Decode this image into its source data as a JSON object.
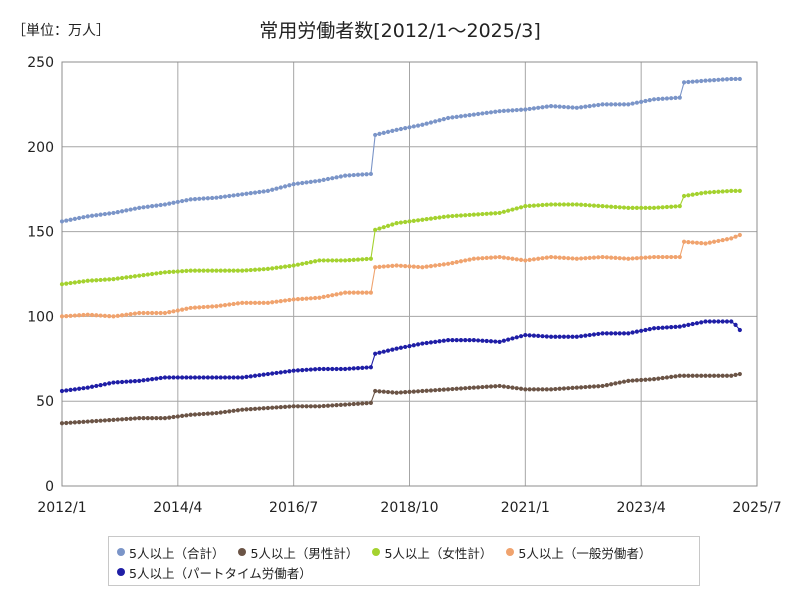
{
  "unit_label": "［単位：万人］",
  "chart_data": {
    "type": "line",
    "title": "常用労働者数[2012/1～2025/3]",
    "xlabel": "",
    "ylabel": "",
    "xlim": [
      "2012/1",
      "2025/7"
    ],
    "ylim": [
      0,
      250
    ],
    "x_ticks": [
      "2012/1",
      "2014/4",
      "2016/7",
      "2018/10",
      "2021/1",
      "2023/4",
      "2025/7"
    ],
    "y_ticks": [
      0,
      50,
      100,
      150,
      200,
      250
    ],
    "grid": true,
    "legend_position": "bottom",
    "series": [
      {
        "name": "5人以上（合計）",
        "color": "#7b95c8",
        "points": [
          [
            "2012/1",
            156
          ],
          [
            "2012/7",
            159
          ],
          [
            "2013/1",
            161
          ],
          [
            "2013/7",
            164
          ],
          [
            "2014/1",
            166
          ],
          [
            "2014/7",
            169
          ],
          [
            "2015/1",
            170
          ],
          [
            "2015/7",
            172
          ],
          [
            "2016/1",
            174
          ],
          [
            "2016/7",
            178
          ],
          [
            "2017/1",
            180
          ],
          [
            "2017/7",
            183
          ],
          [
            "2018/1",
            184
          ],
          [
            "2018/2",
            207
          ],
          [
            "2018/7",
            210
          ],
          [
            "2019/1",
            213
          ],
          [
            "2019/7",
            217
          ],
          [
            "2020/1",
            219
          ],
          [
            "2020/7",
            221
          ],
          [
            "2021/1",
            222
          ],
          [
            "2021/7",
            224
          ],
          [
            "2022/1",
            223
          ],
          [
            "2022/7",
            225
          ],
          [
            "2023/1",
            225
          ],
          [
            "2023/7",
            228
          ],
          [
            "2024/1",
            229
          ],
          [
            "2024/2",
            238
          ],
          [
            "2024/7",
            239
          ],
          [
            "2025/1",
            240
          ],
          [
            "2025/3",
            240
          ]
        ]
      },
      {
        "name": "5人以上（男性計）",
        "color": "#6b5446",
        "points": [
          [
            "2012/1",
            37
          ],
          [
            "2012/7",
            38
          ],
          [
            "2013/1",
            39
          ],
          [
            "2013/7",
            40
          ],
          [
            "2014/1",
            40
          ],
          [
            "2014/7",
            42
          ],
          [
            "2015/1",
            43
          ],
          [
            "2015/7",
            45
          ],
          [
            "2016/1",
            46
          ],
          [
            "2016/7",
            47
          ],
          [
            "2017/1",
            47
          ],
          [
            "2017/7",
            48
          ],
          [
            "2018/1",
            49
          ],
          [
            "2018/2",
            56
          ],
          [
            "2018/7",
            55
          ],
          [
            "2019/1",
            56
          ],
          [
            "2019/7",
            57
          ],
          [
            "2020/1",
            58
          ],
          [
            "2020/7",
            59
          ],
          [
            "2021/1",
            57
          ],
          [
            "2021/7",
            57
          ],
          [
            "2022/1",
            58
          ],
          [
            "2022/7",
            59
          ],
          [
            "2023/1",
            62
          ],
          [
            "2023/7",
            63
          ],
          [
            "2024/1",
            65
          ],
          [
            "2024/7",
            65
          ],
          [
            "2025/1",
            65
          ],
          [
            "2025/3",
            66
          ]
        ]
      },
      {
        "name": "5人以上（女性計）",
        "color": "#a4d22f",
        "points": [
          [
            "2012/1",
            119
          ],
          [
            "2012/7",
            121
          ],
          [
            "2013/1",
            122
          ],
          [
            "2013/7",
            124
          ],
          [
            "2014/1",
            126
          ],
          [
            "2014/7",
            127
          ],
          [
            "2015/1",
            127
          ],
          [
            "2015/7",
            127
          ],
          [
            "2016/1",
            128
          ],
          [
            "2016/7",
            130
          ],
          [
            "2017/1",
            133
          ],
          [
            "2017/7",
            133
          ],
          [
            "2018/1",
            134
          ],
          [
            "2018/2",
            151
          ],
          [
            "2018/7",
            155
          ],
          [
            "2019/1",
            157
          ],
          [
            "2019/7",
            159
          ],
          [
            "2020/1",
            160
          ],
          [
            "2020/7",
            161
          ],
          [
            "2021/1",
            165
          ],
          [
            "2021/7",
            166
          ],
          [
            "2022/1",
            166
          ],
          [
            "2022/7",
            165
          ],
          [
            "2023/1",
            164
          ],
          [
            "2023/7",
            164
          ],
          [
            "2024/1",
            165
          ],
          [
            "2024/2",
            171
          ],
          [
            "2024/7",
            173
          ],
          [
            "2025/1",
            174
          ],
          [
            "2025/3",
            174
          ]
        ]
      },
      {
        "name": "5人以上（一般労働者）",
        "color": "#f0a36e",
        "points": [
          [
            "2012/1",
            100
          ],
          [
            "2012/7",
            101
          ],
          [
            "2013/1",
            100
          ],
          [
            "2013/7",
            102
          ],
          [
            "2014/1",
            102
          ],
          [
            "2014/7",
            105
          ],
          [
            "2015/1",
            106
          ],
          [
            "2015/7",
            108
          ],
          [
            "2016/1",
            108
          ],
          [
            "2016/7",
            110
          ],
          [
            "2017/1",
            111
          ],
          [
            "2017/7",
            114
          ],
          [
            "2018/1",
            114
          ],
          [
            "2018/2",
            129
          ],
          [
            "2018/7",
            130
          ],
          [
            "2019/1",
            129
          ],
          [
            "2019/7",
            131
          ],
          [
            "2020/1",
            134
          ],
          [
            "2020/7",
            135
          ],
          [
            "2021/1",
            133
          ],
          [
            "2021/7",
            135
          ],
          [
            "2022/1",
            134
          ],
          [
            "2022/7",
            135
          ],
          [
            "2023/1",
            134
          ],
          [
            "2023/7",
            135
          ],
          [
            "2024/1",
            135
          ],
          [
            "2024/2",
            144
          ],
          [
            "2024/7",
            143
          ],
          [
            "2025/1",
            146
          ],
          [
            "2025/3",
            148
          ]
        ]
      },
      {
        "name": "5人以上（パートタイム労働者）",
        "color": "#1f1ea6",
        "points": [
          [
            "2012/1",
            56
          ],
          [
            "2012/7",
            58
          ],
          [
            "2013/1",
            61
          ],
          [
            "2013/7",
            62
          ],
          [
            "2014/1",
            64
          ],
          [
            "2014/7",
            64
          ],
          [
            "2015/1",
            64
          ],
          [
            "2015/7",
            64
          ],
          [
            "2016/1",
            66
          ],
          [
            "2016/7",
            68
          ],
          [
            "2017/1",
            69
          ],
          [
            "2017/7",
            69
          ],
          [
            "2018/1",
            70
          ],
          [
            "2018/2",
            78
          ],
          [
            "2018/7",
            81
          ],
          [
            "2019/1",
            84
          ],
          [
            "2019/7",
            86
          ],
          [
            "2020/1",
            86
          ],
          [
            "2020/7",
            85
          ],
          [
            "2021/1",
            89
          ],
          [
            "2021/7",
            88
          ],
          [
            "2022/1",
            88
          ],
          [
            "2022/7",
            90
          ],
          [
            "2023/1",
            90
          ],
          [
            "2023/7",
            93
          ],
          [
            "2024/1",
            94
          ],
          [
            "2024/7",
            97
          ],
          [
            "2025/1",
            97
          ],
          [
            "2025/2",
            95
          ],
          [
            "2025/3",
            92
          ]
        ]
      }
    ]
  }
}
